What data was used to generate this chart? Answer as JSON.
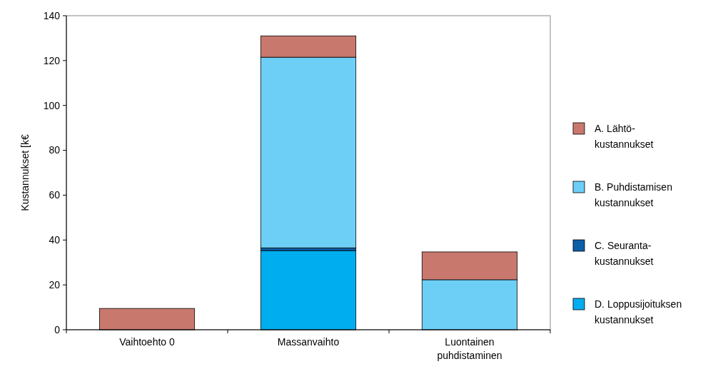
{
  "chart_data": {
    "type": "bar",
    "stacked": true,
    "ylabel": "Kustannukset [k€",
    "categories": [
      "Vaihtoehto 0",
      "Massanvaihto",
      "Luontainen puhdistaminen"
    ],
    "series": [
      {
        "name": "D. Loppusijoituksen kustannukset",
        "color": "#00aeef",
        "values": [
          0,
          35.3,
          0
        ]
      },
      {
        "name": "C. Seuranta-kustannukset",
        "color": "#0d5fa8",
        "values": [
          0,
          1.2,
          0
        ]
      },
      {
        "name": "B. Puhdistamisen kustannukset",
        "color": "#6dcff6",
        "values": [
          0,
          85,
          22.3
        ]
      },
      {
        "name": "A. Lähtö-kustannukset",
        "color": "#c9786e",
        "values": [
          9.5,
          9.5,
          12.4
        ]
      }
    ],
    "ylim": [
      0,
      140
    ],
    "yticks": [
      0,
      20,
      40,
      60,
      80,
      100,
      120,
      140
    ],
    "legend": "right"
  }
}
